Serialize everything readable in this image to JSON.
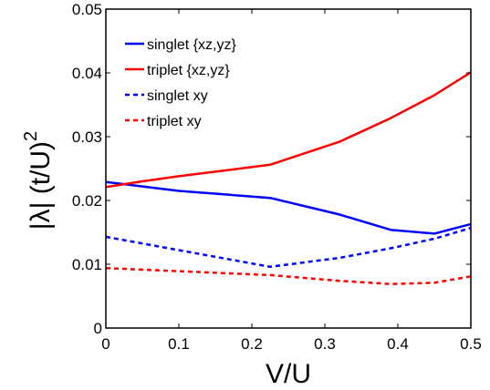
{
  "chart_data": {
    "type": "line",
    "xlabel": "V/U",
    "ylabel_main": "|λ| (t/U)",
    "ylabel_sup": "2",
    "xlim": [
      0,
      0.5
    ],
    "ylim": [
      0,
      0.05
    ],
    "xticks": [
      0,
      0.1,
      0.2,
      0.3,
      0.4,
      0.5
    ],
    "xtick_labels": [
      "0",
      "0.1",
      "0.2",
      "0.3",
      "0.4",
      "0.5"
    ],
    "yticks": [
      0,
      0.01,
      0.02,
      0.03,
      0.04,
      0.05
    ],
    "ytick_labels": [
      "0",
      "0.01",
      "0.02",
      "0.03",
      "0.04",
      "0.05"
    ],
    "grid": false,
    "legend_position": "top-left",
    "series": [
      {
        "name": "singlet {xz,yz}",
        "color": "#0000ff",
        "style": "solid",
        "x": [
          0,
          0.05,
          0.1,
          0.225,
          0.32,
          0.39,
          0.45,
          0.5
        ],
        "y": [
          0.0229,
          0.0222,
          0.0215,
          0.0204,
          0.0178,
          0.0154,
          0.0148,
          0.0163
        ]
      },
      {
        "name": "triplet {xz,yz}",
        "color": "#ff0000",
        "style": "solid",
        "x": [
          0,
          0.05,
          0.1,
          0.225,
          0.32,
          0.39,
          0.45,
          0.5
        ],
        "y": [
          0.0221,
          0.023,
          0.0238,
          0.0256,
          0.0292,
          0.0329,
          0.0365,
          0.0401
        ]
      },
      {
        "name": "singlet xy",
        "color": "#0000ff",
        "style": "dotted",
        "x": [
          0,
          0.225,
          0.32,
          0.39,
          0.45,
          0.5
        ],
        "y": [
          0.0143,
          0.0096,
          0.011,
          0.0125,
          0.014,
          0.0157
        ]
      },
      {
        "name": "triplet xy",
        "color": "#ff0000",
        "style": "dotted",
        "x": [
          0,
          0.225,
          0.32,
          0.39,
          0.45,
          0.5
        ],
        "y": [
          0.0094,
          0.0083,
          0.0074,
          0.0069,
          0.0071,
          0.0081
        ]
      }
    ]
  }
}
